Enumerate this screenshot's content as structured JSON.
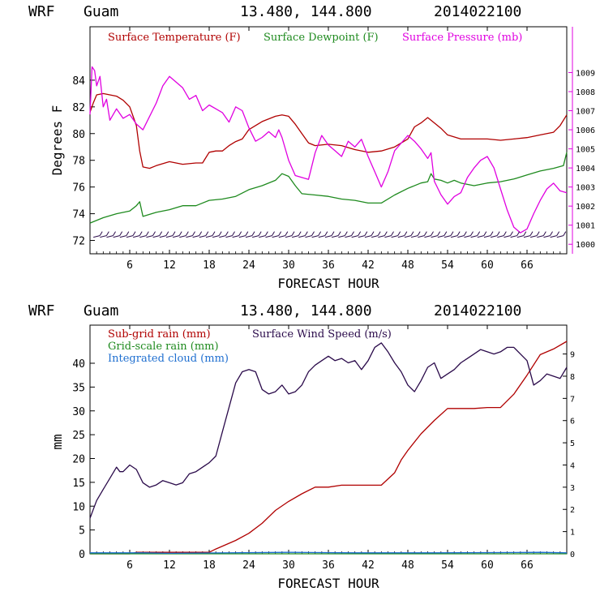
{
  "header": {
    "model": "WRF",
    "station": "Guam",
    "coords": "13.480, 144.800",
    "init": "2014022100"
  },
  "colors": {
    "temperature": "#b00000",
    "dewpoint": "#1e8a1e",
    "pressure": "#e000e0",
    "wind": "#2a0a4a",
    "subgrid": "#b00000",
    "gridscale": "#1e8a1e",
    "cloud": "#1f6fd0"
  },
  "chart_data": [
    {
      "type": "line",
      "xlabel": "FORECAST HOUR",
      "ylabel": "Degrees F",
      "xlim": [
        0,
        72
      ],
      "ylim": [
        71,
        88
      ],
      "y2lim": [
        999.5,
        1011.4
      ],
      "x_ticks": [
        "6",
        "12",
        "18",
        "24",
        "30",
        "36",
        "42",
        "48",
        "54",
        "60",
        "66"
      ],
      "y_ticks": [
        "72",
        "74",
        "76",
        "78",
        "80",
        "82",
        "84"
      ],
      "y2_ticks": [
        "1000",
        "1001",
        "1002",
        "1003",
        "1004",
        "1005",
        "1006",
        "1007",
        "1008",
        "1009"
      ],
      "wind_barbs": true,
      "series": [
        {
          "name": "Surface Temperature (F)",
          "axis": "left",
          "x": [
            0,
            0.5,
            1,
            2,
            3,
            4,
            5,
            6,
            7,
            7.5,
            8,
            9,
            10,
            12,
            14,
            16,
            17,
            18,
            19,
            20,
            21,
            22,
            23,
            24,
            26,
            28,
            29,
            30,
            31,
            32,
            33,
            34,
            36,
            38,
            40,
            42,
            44,
            46,
            48,
            49,
            50,
            51,
            52,
            53,
            54,
            56,
            58,
            60,
            62,
            64,
            66,
            68,
            70,
            71,
            72
          ],
          "values": [
            81.6,
            82.3,
            82.9,
            83.0,
            82.9,
            82.8,
            82.5,
            82.0,
            80.6,
            78.7,
            77.5,
            77.4,
            77.6,
            77.9,
            77.7,
            77.8,
            77.8,
            78.6,
            78.7,
            78.7,
            79.1,
            79.4,
            79.6,
            80.3,
            80.9,
            81.3,
            81.4,
            81.3,
            80.7,
            80.0,
            79.3,
            79.1,
            79.2,
            79.1,
            78.8,
            78.6,
            78.7,
            79.0,
            79.6,
            80.5,
            80.8,
            81.2,
            80.8,
            80.4,
            79.9,
            79.6,
            79.6,
            79.6,
            79.5,
            79.6,
            79.7,
            79.9,
            80.1,
            80.6,
            81.4
          ]
        },
        {
          "name": "Surface Dewpoint (F)",
          "axis": "left",
          "x": [
            0,
            2,
            4,
            6,
            7,
            7.5,
            8,
            10,
            12,
            14,
            16,
            18,
            20,
            22,
            24,
            26,
            28,
            29,
            30,
            31,
            32,
            34,
            36,
            38,
            40,
            42,
            44,
            46,
            48,
            50,
            51,
            51.5,
            52,
            53,
            54,
            55,
            56,
            58,
            60,
            62,
            64,
            66,
            68,
            70,
            71.5,
            72
          ],
          "values": [
            73.3,
            73.7,
            74.0,
            74.2,
            74.6,
            74.9,
            73.8,
            74.1,
            74.3,
            74.6,
            74.6,
            75.0,
            75.1,
            75.3,
            75.8,
            76.1,
            76.5,
            77.0,
            76.8,
            76.1,
            75.5,
            75.4,
            75.3,
            75.1,
            75.0,
            74.8,
            74.8,
            75.4,
            75.9,
            76.3,
            76.4,
            77.0,
            76.6,
            76.5,
            76.3,
            76.5,
            76.3,
            76.1,
            76.3,
            76.4,
            76.6,
            76.9,
            77.2,
            77.4,
            77.6,
            78.6
          ]
        },
        {
          "name": "Surface Pressure (mb)",
          "axis": "right",
          "x": [
            0,
            0.3,
            0.7,
            1,
            1.5,
            2,
            2.5,
            3,
            4,
            5,
            6,
            7,
            8,
            10,
            11,
            12,
            13,
            14,
            15,
            16,
            17,
            18,
            19,
            20,
            21,
            22,
            23,
            24,
            25,
            26,
            27,
            28,
            28.5,
            29,
            30,
            31,
            32,
            33,
            34,
            35,
            36,
            37,
            38,
            39,
            40,
            41,
            42,
            43,
            44,
            45,
            46,
            47,
            48,
            49,
            50,
            51,
            51.5,
            52,
            53,
            54,
            55,
            56,
            57,
            58,
            59,
            60,
            61,
            62,
            63,
            64,
            65,
            66,
            67,
            68,
            69,
            70,
            71,
            72
          ],
          "values": [
            1006.8,
            1009.3,
            1009.1,
            1008.3,
            1008.8,
            1007.2,
            1007.6,
            1006.5,
            1007.1,
            1006.6,
            1006.8,
            1006.3,
            1006.0,
            1007.4,
            1008.3,
            1008.8,
            1008.5,
            1008.2,
            1007.6,
            1007.8,
            1007.0,
            1007.3,
            1007.1,
            1006.9,
            1006.4,
            1007.2,
            1007.0,
            1006.1,
            1005.4,
            1005.6,
            1005.9,
            1005.6,
            1006.0,
            1005.6,
            1004.4,
            1003.6,
            1003.5,
            1003.4,
            1004.8,
            1005.7,
            1005.2,
            1004.9,
            1004.6,
            1005.4,
            1005.1,
            1005.5,
            1004.6,
            1003.8,
            1003.0,
            1003.8,
            1004.9,
            1005.3,
            1005.7,
            1005.4,
            1005.0,
            1004.5,
            1004.8,
            1003.3,
            1002.6,
            1002.1,
            1002.5,
            1002.7,
            1003.5,
            1004.0,
            1004.4,
            1004.6,
            1004.0,
            1002.9,
            1001.8,
            1000.9,
            1000.6,
            1000.8,
            1001.6,
            1002.3,
            1002.9,
            1003.2,
            1002.8,
            1002.7
          ]
        }
      ]
    },
    {
      "type": "line",
      "xlabel": "FORECAST HOUR",
      "ylabel": "mm",
      "xlim": [
        0,
        72
      ],
      "ylim": [
        0,
        48
      ],
      "y2lim": [
        0,
        10.3
      ],
      "x_ticks": [
        "6",
        "12",
        "18",
        "24",
        "30",
        "36",
        "42",
        "48",
        "54",
        "60",
        "66"
      ],
      "y_ticks": [
        "0",
        "5",
        "10",
        "15",
        "20",
        "25",
        "30",
        "35",
        "40"
      ],
      "y2_ticks": [
        "0",
        "1",
        "2",
        "3",
        "4",
        "5",
        "6",
        "7",
        "8",
        "9"
      ],
      "series": [
        {
          "name": "Sub-grid rain (mm)",
          "axis": "left",
          "x": [
            0,
            6,
            7,
            18,
            19,
            20,
            22,
            24,
            26,
            28,
            30,
            32,
            34,
            36,
            38,
            40,
            42,
            44,
            46,
            47,
            48,
            50,
            52,
            54,
            56,
            58,
            60,
            62,
            64,
            66,
            68,
            70,
            72
          ],
          "values": [
            0,
            0,
            0.3,
            0.3,
            1.0,
            1.6,
            2.8,
            4.3,
            6.4,
            9.1,
            11.0,
            12.6,
            14.0,
            14.0,
            14.4,
            14.4,
            14.4,
            14.4,
            17.0,
            19.7,
            21.7,
            25.2,
            28.0,
            30.5,
            30.5,
            30.5,
            30.7,
            30.7,
            33.5,
            37.5,
            41.8,
            43.0,
            44.6
          ]
        },
        {
          "name": "Surface Wind Speed (m/s)",
          "axis": "right",
          "x": [
            0,
            0.5,
            1,
            2,
            3,
            4,
            4.5,
            5,
            6,
            7,
            8,
            9,
            10,
            11,
            12,
            13,
            14,
            15,
            16,
            17,
            18,
            19,
            20,
            21,
            22,
            23,
            24,
            25,
            26,
            27,
            28,
            29,
            30,
            31,
            32,
            33,
            34,
            35,
            36,
            37,
            38,
            39,
            40,
            41,
            42,
            43,
            44,
            45,
            46,
            47,
            48,
            49,
            50,
            51,
            52,
            53,
            54,
            55,
            56,
            57,
            58,
            59,
            60,
            61,
            62,
            63,
            64,
            65,
            66,
            67,
            68,
            69,
            70,
            71,
            72
          ],
          "values": [
            1.6,
            2.0,
            2.4,
            2.9,
            3.4,
            3.9,
            3.7,
            3.7,
            4.0,
            3.8,
            3.2,
            3.0,
            3.1,
            3.3,
            3.2,
            3.1,
            3.2,
            3.6,
            3.7,
            3.9,
            4.1,
            4.4,
            5.5,
            6.6,
            7.7,
            8.2,
            8.3,
            8.2,
            7.4,
            7.2,
            7.3,
            7.6,
            7.2,
            7.3,
            7.6,
            8.2,
            8.5,
            8.7,
            8.9,
            8.7,
            8.8,
            8.6,
            8.7,
            8.3,
            8.7,
            9.3,
            9.5,
            9.1,
            8.6,
            8.2,
            7.6,
            7.3,
            7.8,
            8.4,
            8.6,
            7.9,
            8.1,
            8.3,
            8.6,
            8.8,
            9.0,
            9.2,
            9.1,
            9.0,
            9.1,
            9.3,
            9.3,
            9.0,
            8.7,
            7.6,
            7.8,
            8.1,
            8.0,
            7.9,
            8.4
          ]
        },
        {
          "name": "Grid-scale rain (mm)",
          "axis": "left",
          "x": [
            0,
            72
          ],
          "values": [
            0,
            0
          ]
        },
        {
          "name": "Integrated cloud (mm)",
          "axis": "left",
          "x": [
            0,
            8,
            12,
            30,
            40,
            52,
            68,
            72
          ],
          "values": [
            0.2,
            0.2,
            0.1,
            0.3,
            0.2,
            0.2,
            0.3,
            0.2
          ]
        }
      ]
    }
  ]
}
